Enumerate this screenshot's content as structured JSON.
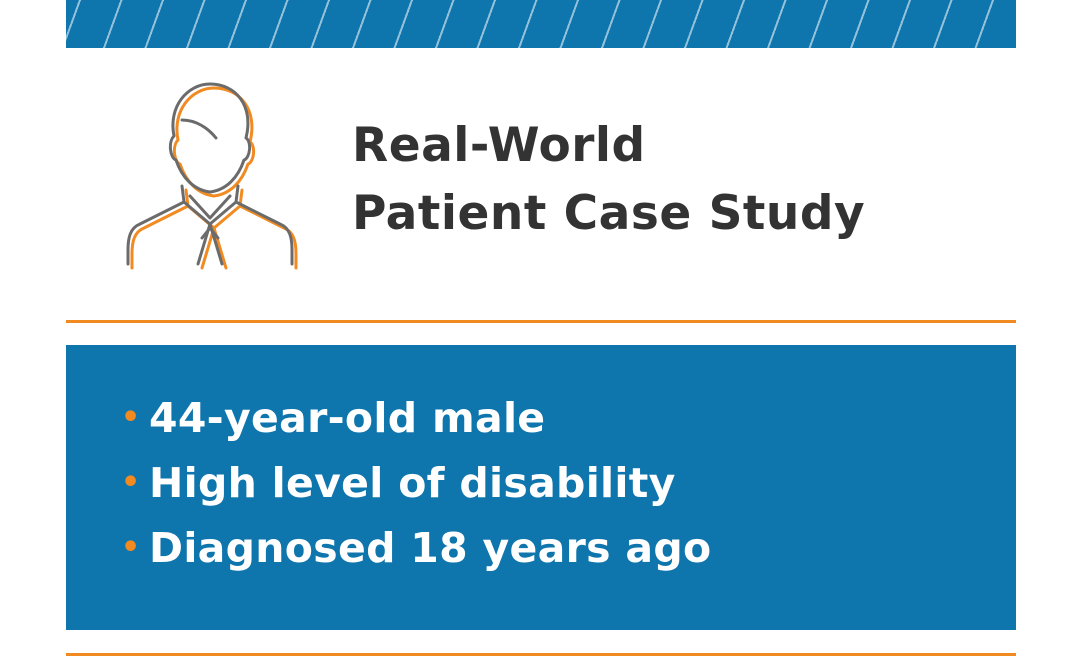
{
  "colors": {
    "brand_blue": "#0f75ad",
    "accent_orange": "#f18a21",
    "title_text": "#333333",
    "bullet_text": "#ffffff"
  },
  "icon": {
    "name": "person-icon"
  },
  "title": {
    "line1": "Real-World",
    "line2": "Patient Case Study"
  },
  "bullets": [
    {
      "marker": "•",
      "text": "44-year-old male"
    },
    {
      "marker": "•",
      "text": "High level of disability"
    },
    {
      "marker": "•",
      "text": "Diagnosed 18 years ago"
    }
  ]
}
